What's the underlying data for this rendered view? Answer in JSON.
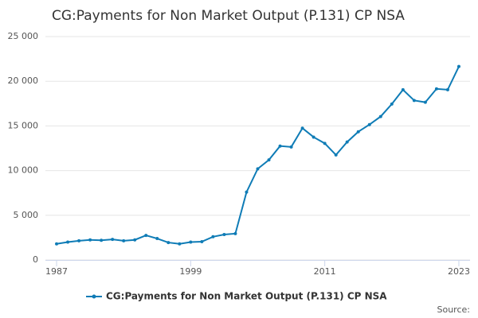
{
  "chart_data": {
    "type": "line",
    "title": "CG:Payments for Non Market Output (P.131) CP NSA",
    "source": "Source:",
    "x": [
      1987,
      1988,
      1989,
      1990,
      1991,
      1992,
      1993,
      1994,
      1995,
      1996,
      1997,
      1998,
      1999,
      2000,
      2001,
      2002,
      2003,
      2004,
      2005,
      2006,
      2007,
      2008,
      2009,
      2010,
      2011,
      2012,
      2013,
      2014,
      2015,
      2016,
      2017,
      2018,
      2019,
      2020,
      2021,
      2022,
      2023
    ],
    "series": [
      {
        "name": "CG:Payments for Non Market Output (P.131) CP NSA",
        "color": "#0f7cb6",
        "values": [
          1800,
          2000,
          2150,
          2250,
          2200,
          2300,
          2150,
          2250,
          2750,
          2400,
          1950,
          1800,
          2000,
          2050,
          2600,
          2850,
          2950,
          7600,
          10200,
          11200,
          12750,
          12650,
          14750,
          13750,
          13050,
          11750,
          13200,
          14350,
          15150,
          16050,
          17450,
          19050,
          17850,
          17650,
          19150,
          19050,
          21650
        ]
      }
    ],
    "xlim": [
      1986,
      2024
    ],
    "xticks": [
      1987,
      1999,
      2011,
      2023
    ],
    "ylim": [
      0,
      25000
    ],
    "yticks": [
      0,
      {
        "value": 5000,
        "label": "5 000"
      },
      {
        "value": 10000,
        "label": "10 000"
      },
      {
        "value": 15000,
        "label": "15 000"
      },
      {
        "value": 20000,
        "label": "20 000"
      },
      {
        "value": 25000,
        "label": "25 000"
      }
    ],
    "grid": true
  }
}
